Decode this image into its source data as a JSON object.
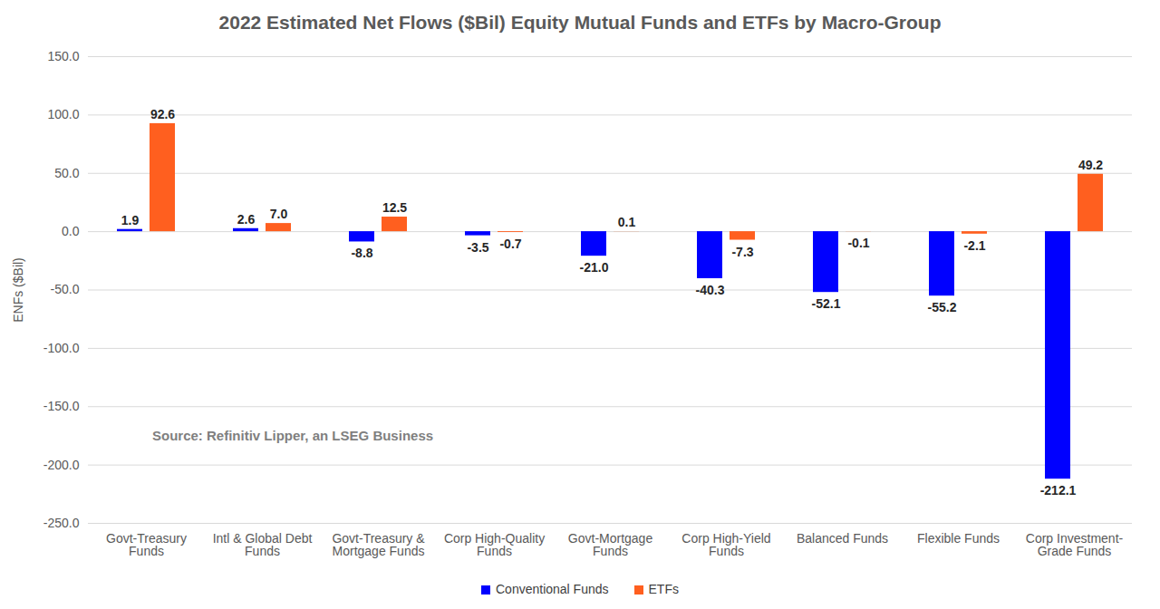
{
  "chart_data": {
    "type": "bar",
    "title": "2022 Estimated Net Flows ($Bil) Equity Mutual Funds and ETFs by Macro-Group",
    "y_label": "ENFs ($Bil)",
    "annotations": [
      "Source: Refinitiv Lipper, an LSEG Business"
    ],
    "categories": [
      "Govt-Treasury Funds",
      "Intl & Global Debt Funds",
      "Govt-Treasury & Mortgage Funds",
      "Corp High-Quality Funds",
      "Govt-Mortgage Funds",
      "Corp High-Yield Funds",
      "Balanced Funds",
      "Flexible Funds",
      "Corp Investment-Grade Funds"
    ],
    "series": [
      {
        "name": "Conventional Funds",
        "color": "#0000ff",
        "values": [
          1.9,
          2.6,
          -8.8,
          -3.5,
          -21.0,
          -40.3,
          -52.1,
          -55.2,
          -212.1
        ],
        "value_labels": [
          "1.9",
          "2.6",
          "-8.8",
          "-3.5",
          "-21.0",
          "-40.3",
          "-52.1",
          "-55.2",
          "-212.1"
        ]
      },
      {
        "name": "ETFs",
        "color": "#ff5f1f",
        "values": [
          92.6,
          7.0,
          12.5,
          -0.7,
          0.1,
          -7.3,
          -0.1,
          -2.1,
          49.2
        ],
        "value_labels": [
          "92.6",
          "7.0",
          "12.5",
          "-0.7",
          "0.1",
          "-7.3",
          "-0.1",
          "-2.1",
          "49.2"
        ]
      }
    ],
    "ylim": [
      -250,
      150
    ],
    "yticks": [
      {
        "value": -250,
        "label": "-250.0"
      },
      {
        "value": -200,
        "label": "-200.0"
      },
      {
        "value": -150,
        "label": "-150.0"
      },
      {
        "value": -100,
        "label": "-100.0"
      },
      {
        "value": -50,
        "label": "-50.0"
      },
      {
        "value": 0,
        "label": "0.0"
      },
      {
        "value": 50,
        "label": "50.0"
      },
      {
        "value": 100,
        "label": "100.0"
      },
      {
        "value": 150,
        "label": "150.0"
      }
    ],
    "grid": true,
    "legend": "bottom",
    "data_labels": true
  }
}
